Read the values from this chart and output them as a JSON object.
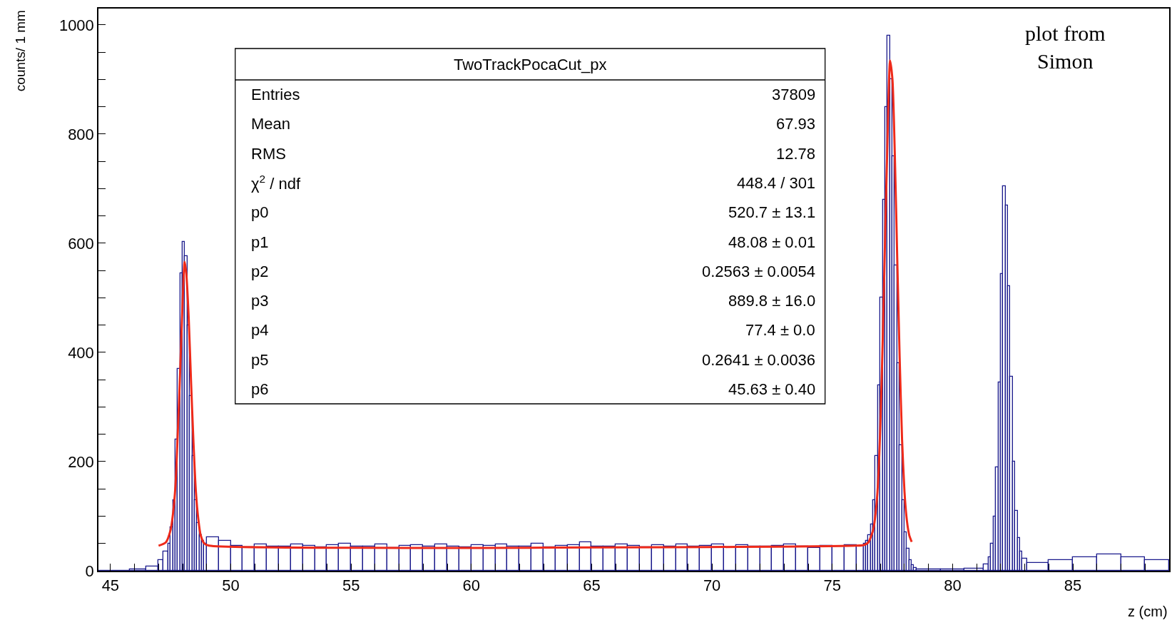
{
  "chart_data": {
    "type": "histogram",
    "xlabel": "z (cm)",
    "ylabel": "counts/ 1 mm",
    "xlim": [
      44.5,
      89.0
    ],
    "ylim": [
      0,
      1030
    ],
    "xticks": [
      {
        "value": 45,
        "label": "45"
      },
      {
        "value": 46,
        "label": null
      },
      {
        "value": 47,
        "label": null
      },
      {
        "value": 48,
        "label": null
      },
      {
        "value": 49,
        "label": null
      },
      {
        "value": 50,
        "label": "50"
      },
      {
        "value": 51,
        "label": null
      },
      {
        "value": 52,
        "label": null
      },
      {
        "value": 53,
        "label": null
      },
      {
        "value": 54,
        "label": null
      },
      {
        "value": 55,
        "label": "55"
      },
      {
        "value": 56,
        "label": null
      },
      {
        "value": 57,
        "label": null
      },
      {
        "value": 58,
        "label": null
      },
      {
        "value": 59,
        "label": null
      },
      {
        "value": 60,
        "label": "60"
      },
      {
        "value": 61,
        "label": null
      },
      {
        "value": 62,
        "label": null
      },
      {
        "value": 63,
        "label": null
      },
      {
        "value": 64,
        "label": null
      },
      {
        "value": 65,
        "label": "65"
      },
      {
        "value": 66,
        "label": null
      },
      {
        "value": 67,
        "label": null
      },
      {
        "value": 68,
        "label": null
      },
      {
        "value": 69,
        "label": null
      },
      {
        "value": 70,
        "label": "70"
      },
      {
        "value": 71,
        "label": null
      },
      {
        "value": 72,
        "label": null
      },
      {
        "value": 73,
        "label": null
      },
      {
        "value": 74,
        "label": null
      },
      {
        "value": 75,
        "label": "75"
      },
      {
        "value": 76,
        "label": null
      },
      {
        "value": 77,
        "label": null
      },
      {
        "value": 78,
        "label": null
      },
      {
        "value": 79,
        "label": null
      },
      {
        "value": 80,
        "label": "80"
      },
      {
        "value": 81,
        "label": null
      },
      {
        "value": 82,
        "label": null
      },
      {
        "value": 83,
        "label": null
      },
      {
        "value": 84,
        "label": null
      },
      {
        "value": 85,
        "label": "85"
      },
      {
        "value": 86,
        "label": null
      },
      {
        "value": 87,
        "label": null
      },
      {
        "value": 88,
        "label": null
      }
    ],
    "yticks": [
      0,
      {
        "value": 50,
        "label": null
      },
      {
        "value": 100,
        "label": null
      },
      {
        "value": 150,
        "label": null
      },
      200,
      {
        "value": 250,
        "label": null
      },
      {
        "value": 300,
        "label": null
      },
      {
        "value": 350,
        "label": null
      },
      400,
      {
        "value": 450,
        "label": null
      },
      {
        "value": 500,
        "label": null
      },
      {
        "value": 550,
        "label": null
      },
      600,
      {
        "value": 650,
        "label": null
      },
      {
        "value": 700,
        "label": null
      },
      {
        "value": 750,
        "label": null
      },
      800,
      {
        "value": 850,
        "label": null
      },
      {
        "value": 900,
        "label": null
      },
      {
        "value": 950,
        "label": null
      },
      1000
    ],
    "series": [
      {
        "color": "#1a1a8c",
        "bins": [
          44.5,
          45.8,
          46.5,
          47.0,
          47.2,
          47.4,
          47.5,
          47.6,
          47.7,
          47.8,
          47.9,
          48.0,
          48.1,
          48.2,
          48.3,
          48.4,
          48.5,
          48.6,
          48.7,
          48.8,
          48.9,
          49.0,
          49.5,
          50.0,
          50.5,
          51.0,
          51.5,
          52.0,
          52.5,
          53.0,
          53.5,
          54.0,
          54.5,
          55.0,
          55.5,
          56.0,
          56.5,
          57.0,
          57.5,
          58.0,
          58.5,
          59.0,
          59.5,
          60.0,
          60.5,
          61.0,
          61.5,
          62.0,
          62.5,
          63.0,
          63.5,
          64.0,
          64.5,
          65.0,
          65.5,
          66.0,
          66.5,
          67.0,
          67.5,
          68.0,
          68.5,
          69.0,
          69.5,
          70.0,
          70.5,
          71.0,
          71.5,
          72.0,
          72.5,
          73.0,
          73.5,
          74.0,
          74.5,
          75.0,
          75.5,
          76.0,
          76.3,
          76.4,
          76.5,
          76.6,
          76.7,
          76.8,
          76.9,
          77.0,
          77.1,
          77.2,
          77.3,
          77.4,
          77.5,
          77.6,
          77.7,
          77.8,
          77.9,
          78.0,
          78.1,
          78.2,
          78.3,
          78.4,
          78.5,
          79.5,
          80.5,
          81.3,
          81.5,
          81.6,
          81.7,
          81.8,
          81.9,
          82.0,
          82.1,
          82.2,
          82.3,
          82.4,
          82.5,
          82.6,
          82.7,
          82.8,
          82.9,
          83.1,
          84.0,
          85.0,
          86.0,
          87.0,
          88.0,
          89.0
        ],
        "values": [
          0,
          2,
          8,
          20,
          35,
          50,
          80,
          130,
          240,
          370,
          545,
          603,
          576,
          450,
          320,
          210,
          130,
          88,
          65,
          55,
          50,
          62,
          55,
          46,
          43,
          48,
          45,
          44,
          49,
          46,
          43,
          47,
          50,
          44,
          45,
          48,
          42,
          46,
          47,
          44,
          49,
          45,
          43,
          47,
          46,
          48,
          44,
          45,
          50,
          43,
          46,
          47,
          52,
          45,
          44,
          48,
          46,
          43,
          47,
          45,
          49,
          44,
          46,
          48,
          43,
          47,
          45,
          44,
          46,
          48,
          45,
          42,
          46,
          44,
          47,
          46,
          50,
          55,
          65,
          85,
          130,
          210,
          340,
          500,
          680,
          850,
          980,
          900,
          760,
          560,
          380,
          230,
          130,
          70,
          40,
          20,
          10,
          5,
          3,
          2,
          4,
          12,
          25,
          50,
          100,
          190,
          345,
          544,
          705,
          669,
          522,
          356,
          200,
          110,
          60,
          35,
          22,
          15,
          20,
          25,
          30,
          25,
          20
        ]
      },
      {
        "type": "line",
        "color": "#ee2a1a",
        "x": [
          47.0,
          47.3,
          47.5,
          47.6,
          47.7,
          47.8,
          47.9,
          48.0,
          48.08,
          48.15,
          48.25,
          48.35,
          48.45,
          48.55,
          48.65,
          48.75,
          48.9,
          49.1,
          76.0,
          76.3,
          76.5,
          76.7,
          76.8,
          76.9,
          77.0,
          77.1,
          77.2,
          77.3,
          77.4,
          77.5,
          77.6,
          77.7,
          77.8,
          77.9,
          78.0,
          78.1,
          78.2,
          78.3
        ],
        "values": [
          46,
          52,
          75,
          105,
          155,
          255,
          370,
          495,
          566,
          545,
          465,
          345,
          235,
          145,
          95,
          65,
          50,
          46,
          46,
          47,
          52,
          75,
          105,
          160,
          270,
          430,
          620,
          800,
          935,
          900,
          760,
          570,
          390,
          240,
          145,
          92,
          65,
          53
        ]
      }
    ],
    "annotations": [
      "TwoTrackPocaCut_px",
      "Entries",
      "37809",
      "Mean",
      "67.93",
      "RMS",
      "12.78",
      "χ$^{2}$ / ndf",
      "448.4 / 301",
      "p0",
      "520.7 ± 13.1",
      "p1",
      "48.08 ± 0.01",
      "p2",
      "0.2563 ± 0.0054",
      "p3",
      "889.8 ± 16.0",
      "p4",
      "77.4 ± 0.0",
      "p5",
      "0.2641 ± 0.0036",
      "p6",
      "45.63 ± 0.40",
      "plot from\nSimon"
    ]
  }
}
